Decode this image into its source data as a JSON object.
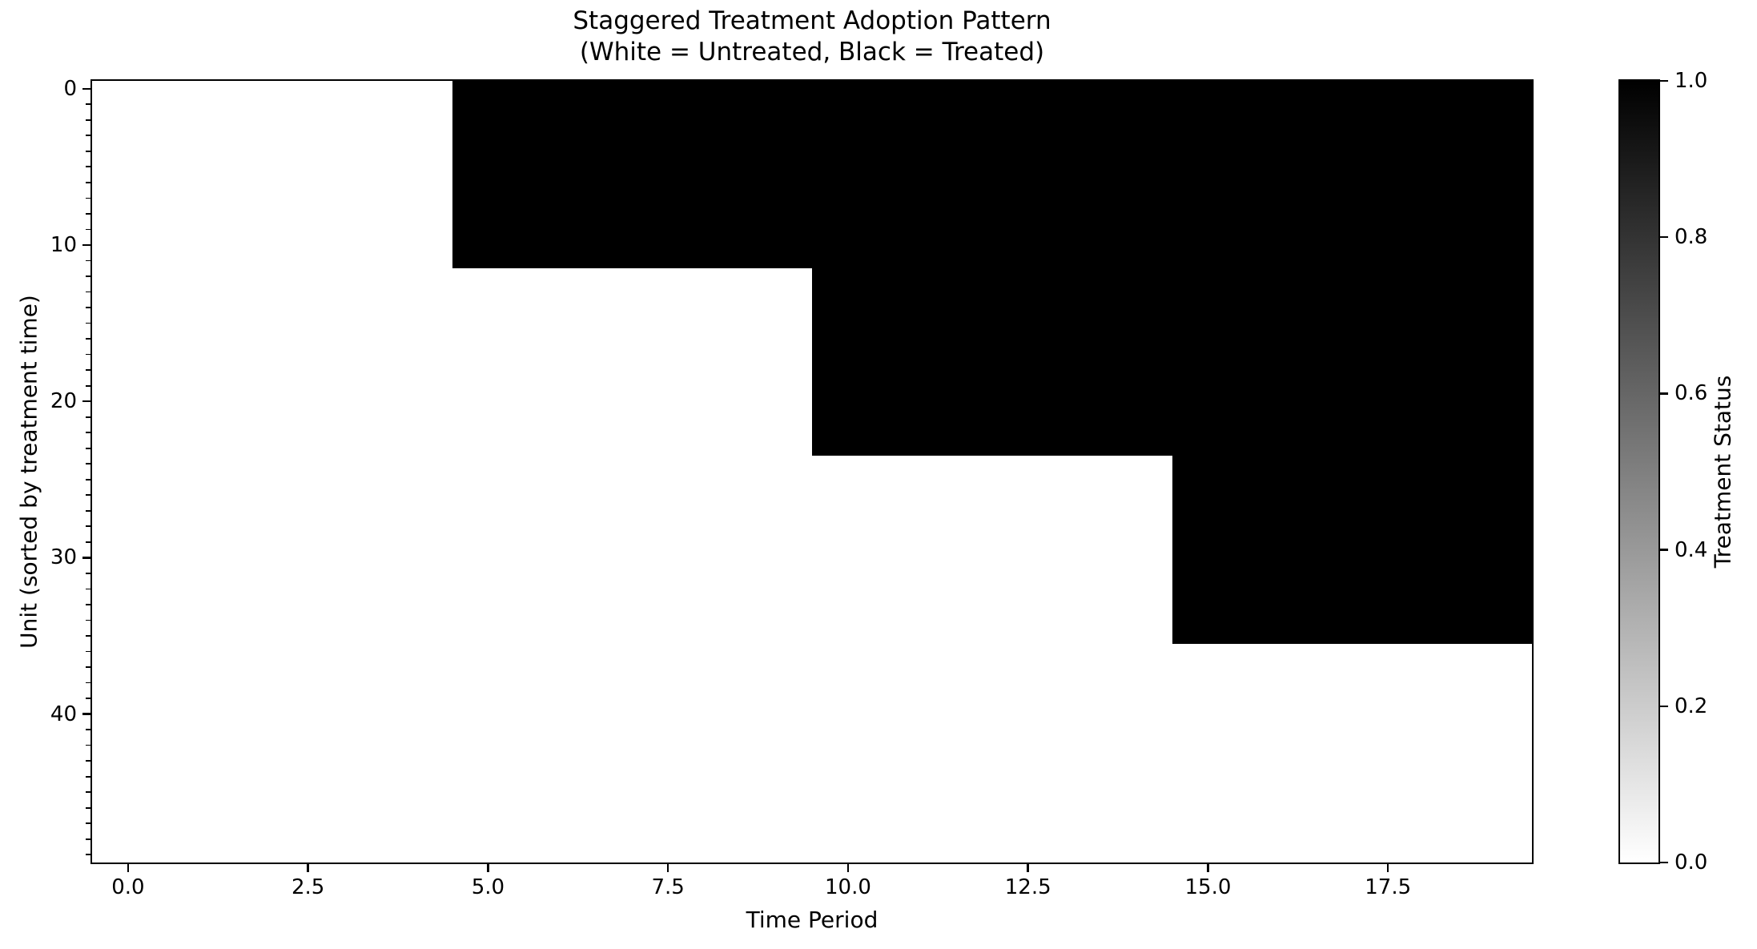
{
  "chart_data": {
    "type": "heatmap",
    "title": "Staggered Treatment Adoption Pattern",
    "subtitle": "(White = Untreated, Black = Treated)",
    "xlabel": "Time Period",
    "ylabel": "Unit (sorted by treatment time)",
    "x_range": [
      -0.5,
      19.5
    ],
    "y_range": [
      -0.5,
      49.5
    ],
    "y_axis_inverted": true,
    "n_units": 50,
    "n_time_periods": 20,
    "value_legend": {
      "untreated": 0,
      "treated": 1
    },
    "colors": {
      "untreated": "#ffffff",
      "treated": "#000000"
    },
    "cohorts": [
      {
        "units_from": 0,
        "units_to": 11,
        "treatment_start_period": 5
      },
      {
        "units_from": 12,
        "units_to": 23,
        "treatment_start_period": 10
      },
      {
        "units_from": 24,
        "units_to": 35,
        "treatment_start_period": 15
      },
      {
        "units_from": 36,
        "units_to": 49,
        "treatment_start_period": null
      }
    ],
    "x_ticks": [
      {
        "value": 0,
        "label": "0.0"
      },
      {
        "value": 2.5,
        "label": "2.5"
      },
      {
        "value": 5,
        "label": "5.0"
      },
      {
        "value": 7.5,
        "label": "7.5"
      },
      {
        "value": 10,
        "label": "10.0"
      },
      {
        "value": 12.5,
        "label": "12.5"
      },
      {
        "value": 15,
        "label": "15.0"
      },
      {
        "value": 17.5,
        "label": "17.5"
      }
    ],
    "y_ticks": [
      {
        "value": 0,
        "label": "0"
      },
      {
        "value": 10,
        "label": "10"
      },
      {
        "value": 20,
        "label": "20"
      },
      {
        "value": 30,
        "label": "30"
      },
      {
        "value": 40,
        "label": "40"
      }
    ],
    "y_minor_ticks_every": 1,
    "grid": false,
    "colorbar": {
      "label": "Treatment Status",
      "min": 0,
      "max": 1,
      "ticks": [
        {
          "value": 1.0,
          "label": "1.0"
        },
        {
          "value": 0.8,
          "label": "0.8"
        },
        {
          "value": 0.6,
          "label": "0.6"
        },
        {
          "value": 0.4,
          "label": "0.4"
        },
        {
          "value": 0.2,
          "label": "0.2"
        },
        {
          "value": 0.0,
          "label": "0.0"
        }
      ]
    }
  }
}
